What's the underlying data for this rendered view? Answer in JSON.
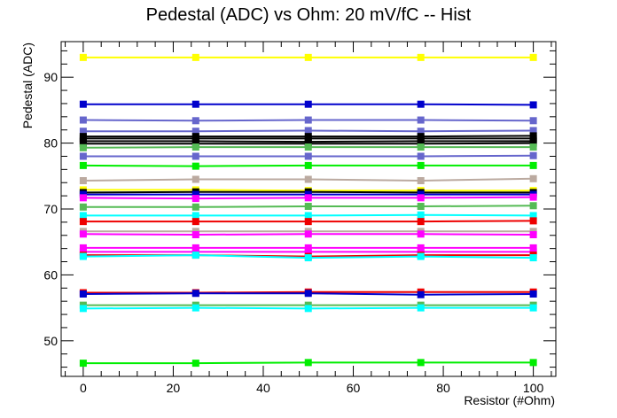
{
  "chart_data": {
    "type": "line",
    "title": "Pedestal (ADC) vs Ohm: 20 mV/fC -- Hist",
    "xlabel": "Resistor (#Ohm)",
    "ylabel": "Pedestal (ADC)",
    "xlim": [
      -4.9,
      105
    ],
    "ylim": [
      44.6,
      95.4
    ],
    "x": [
      0,
      25,
      50,
      75,
      100
    ],
    "xticks": [
      0,
      20,
      40,
      60,
      80,
      100
    ],
    "yticks": [
      50,
      60,
      70,
      80,
      90
    ],
    "grid": false,
    "legend": "none",
    "series": [
      {
        "color": "#ffff00",
        "values": [
          93.0,
          93.0,
          93.0,
          93.0,
          93.0
        ]
      },
      {
        "color": "#0000cc",
        "values": [
          85.9,
          85.9,
          85.9,
          85.9,
          85.8
        ]
      },
      {
        "color": "#6666cc",
        "values": [
          83.5,
          83.4,
          83.5,
          83.5,
          83.4
        ]
      },
      {
        "color": "#6666cc",
        "values": [
          81.8,
          81.8,
          81.9,
          81.8,
          81.9
        ]
      },
      {
        "color": "#000000",
        "values": [
          81.0,
          81.0,
          81.0,
          81.0,
          81.1
        ]
      },
      {
        "color": "#000000",
        "values": [
          80.7,
          80.7,
          80.7,
          80.7,
          80.7
        ]
      },
      {
        "color": "#000000",
        "values": [
          80.3,
          80.3,
          80.2,
          80.3,
          80.3
        ]
      },
      {
        "color": "#000000",
        "values": [
          79.9,
          79.9,
          79.9,
          79.9,
          80.0
        ]
      },
      {
        "color": "#55bb55",
        "values": [
          79.3,
          79.4,
          79.4,
          79.4,
          79.4
        ]
      },
      {
        "color": "#6666cc",
        "values": [
          78.0,
          78.0,
          78.0,
          78.0,
          78.1
        ]
      },
      {
        "color": "#00ee00",
        "values": [
          76.6,
          76.5,
          76.6,
          76.6,
          76.6
        ]
      },
      {
        "color": "#bbaaa0",
        "values": [
          74.3,
          74.5,
          74.5,
          74.3,
          74.6
        ]
      },
      {
        "color": "#ffff00",
        "values": [
          72.9,
          72.9,
          72.8,
          72.8,
          72.8
        ]
      },
      {
        "color": "#000000",
        "values": [
          72.5,
          72.6,
          72.6,
          72.5,
          72.5
        ]
      },
      {
        "color": "#0000cc",
        "values": [
          72.2,
          72.2,
          72.2,
          72.2,
          72.2
        ]
      },
      {
        "color": "#ff00ff",
        "values": [
          71.7,
          71.6,
          71.7,
          71.7,
          71.8
        ]
      },
      {
        "color": "#55bb55",
        "values": [
          70.3,
          70.3,
          70.4,
          70.4,
          70.5
        ]
      },
      {
        "color": "#00ffff",
        "values": [
          69.0,
          69.0,
          69.0,
          69.1,
          69.0
        ]
      },
      {
        "color": "#ee0000",
        "values": [
          68.1,
          68.1,
          68.1,
          68.1,
          68.2
        ]
      },
      {
        "color": "#bbaaa0",
        "values": [
          66.6,
          66.6,
          66.6,
          66.6,
          66.6
        ]
      },
      {
        "color": "#ff00ff",
        "values": [
          66.2,
          66.1,
          66.2,
          66.2,
          66.1
        ]
      },
      {
        "color": "#ff00ff",
        "values": [
          64.1,
          64.1,
          64.1,
          64.1,
          64.1
        ]
      },
      {
        "color": "#ff00ff",
        "values": [
          63.5,
          63.5,
          63.5,
          63.5,
          63.5
        ]
      },
      {
        "color": "#ee0000",
        "values": [
          63.0,
          63.0,
          62.8,
          63.0,
          63.0
        ]
      },
      {
        "color": "#00ffff",
        "values": [
          62.8,
          63.0,
          62.6,
          62.8,
          62.6
        ]
      },
      {
        "color": "#ee0000",
        "values": [
          57.3,
          57.3,
          57.4,
          57.4,
          57.4
        ]
      },
      {
        "color": "#0000cc",
        "values": [
          57.1,
          57.2,
          57.2,
          57.0,
          57.1
        ]
      },
      {
        "color": "#55bb55",
        "values": [
          55.4,
          55.4,
          55.4,
          55.4,
          55.4
        ]
      },
      {
        "color": "#00ffff",
        "values": [
          54.9,
          55.0,
          54.9,
          55.0,
          55.0
        ]
      },
      {
        "color": "#00ee00",
        "values": [
          46.6,
          46.6,
          46.7,
          46.7,
          46.7
        ]
      }
    ]
  }
}
